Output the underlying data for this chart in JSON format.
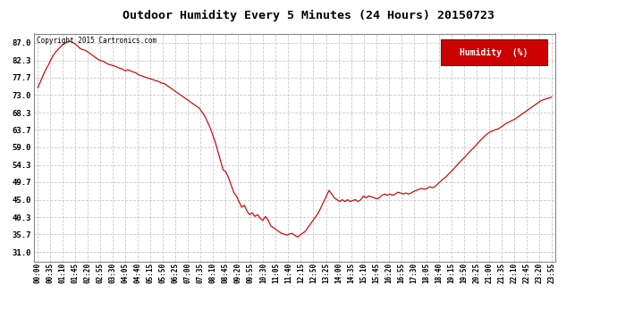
{
  "title": "Outdoor Humidity Every 5 Minutes (24 Hours) 20150723",
  "copyright_text": "Copyright 2015 Cartronics.com",
  "legend_label": "Humidity  (%)",
  "legend_bg": "#cc0000",
  "legend_fg": "#ffffff",
  "line_color": "#cc0000",
  "background_color": "#ffffff",
  "grid_color": "#bbbbbb",
  "yticks": [
    31.0,
    35.7,
    40.3,
    45.0,
    49.7,
    54.3,
    59.0,
    63.7,
    68.3,
    73.0,
    77.7,
    82.3,
    87.0
  ],
  "xtick_labels": [
    "00:00",
    "00:35",
    "01:10",
    "01:45",
    "02:20",
    "02:55",
    "03:30",
    "04:05",
    "04:40",
    "05:15",
    "05:50",
    "06:25",
    "07:00",
    "07:35",
    "08:10",
    "08:45",
    "09:20",
    "09:55",
    "10:30",
    "11:05",
    "11:40",
    "12:15",
    "12:50",
    "13:25",
    "14:00",
    "14:35",
    "15:10",
    "15:45",
    "16:20",
    "16:55",
    "17:30",
    "18:05",
    "18:40",
    "19:15",
    "19:50",
    "20:25",
    "21:00",
    "21:35",
    "22:10",
    "22:45",
    "23:20",
    "23:55"
  ],
  "ylim": [
    28.5,
    89.5
  ],
  "humidity_data": [
    75.0,
    76.5,
    78.2,
    79.8,
    81.0,
    82.5,
    83.8,
    84.7,
    85.5,
    86.2,
    86.8,
    87.2,
    87.5,
    87.2,
    86.8,
    86.2,
    85.5,
    85.2,
    85.0,
    84.5,
    84.0,
    83.5,
    83.0,
    82.5,
    82.2,
    82.0,
    81.5,
    81.2,
    81.0,
    80.8,
    80.5,
    80.2,
    80.0,
    79.5,
    79.8,
    79.5,
    79.2,
    79.0,
    78.5,
    78.2,
    78.0,
    77.7,
    77.5,
    77.3,
    77.0,
    76.8,
    76.5,
    76.2,
    76.0,
    75.5,
    75.0,
    74.5,
    74.0,
    73.5,
    73.0,
    72.5,
    72.0,
    71.5,
    71.0,
    70.5,
    70.0,
    69.5,
    68.5,
    67.5,
    66.0,
    64.5,
    62.5,
    60.5,
    58.0,
    55.5,
    53.0,
    52.5,
    51.0,
    49.0,
    47.0,
    46.0,
    44.5,
    43.0,
    43.5,
    42.0,
    41.0,
    41.5,
    40.5,
    41.0,
    40.0,
    39.5,
    40.5,
    39.5,
    38.0,
    37.5,
    37.0,
    36.5,
    36.0,
    35.8,
    35.5,
    35.8,
    36.0,
    35.5,
    35.0,
    35.5,
    36.0,
    36.5,
    37.5,
    38.5,
    39.5,
    40.5,
    41.5,
    43.0,
    44.5,
    46.0,
    47.5,
    46.5,
    45.5,
    45.0,
    44.5,
    45.0,
    44.5,
    45.0,
    44.5,
    44.8,
    45.0,
    44.5,
    45.0,
    46.0,
    45.5,
    46.0,
    45.8,
    45.5,
    45.2,
    45.5,
    46.2,
    46.5,
    46.2,
    46.5,
    46.2,
    46.5,
    47.0,
    46.8,
    46.5,
    46.8,
    46.5,
    46.8,
    47.2,
    47.5,
    47.8,
    48.0,
    47.8,
    48.0,
    48.5,
    48.2,
    48.5,
    49.2,
    49.8,
    50.5,
    51.0,
    51.8,
    52.5,
    53.2,
    54.0,
    54.8,
    55.5,
    56.2,
    57.0,
    57.8,
    58.5,
    59.2,
    60.0,
    60.8,
    61.5,
    62.2,
    62.8,
    63.2,
    63.5,
    63.8,
    64.0,
    64.5,
    65.0,
    65.5,
    65.8,
    66.2,
    66.5,
    67.0,
    67.5,
    68.0,
    68.5,
    69.0,
    69.5,
    70.0,
    70.5,
    71.0,
    71.5,
    71.8,
    72.0,
    72.2,
    72.5
  ]
}
